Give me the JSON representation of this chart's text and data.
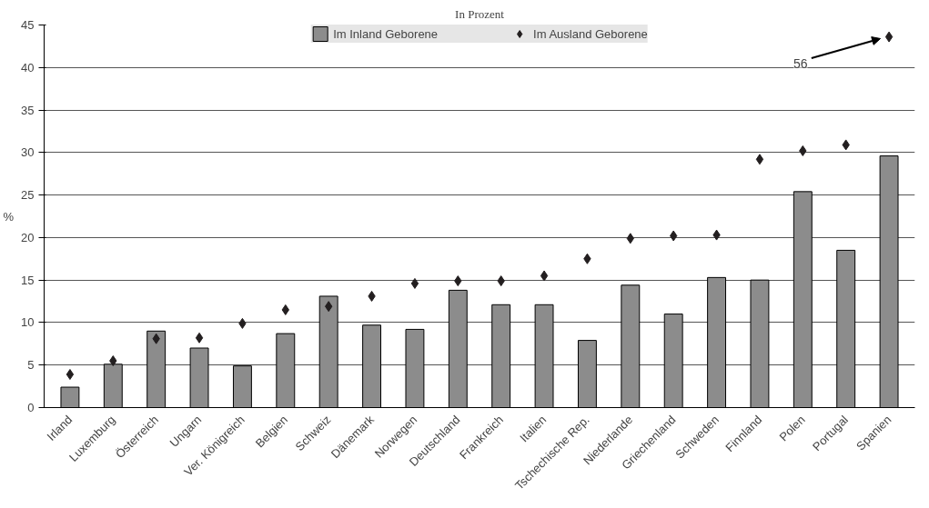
{
  "chart_data": {
    "type": "bar",
    "title": "In Prozent",
    "ylabel": "%",
    "categories": [
      "Irland",
      "Luxemburg",
      "Österreich",
      "Ungarn",
      "Ver. Königreich",
      "Belgien",
      "Schweiz",
      "Dänemark",
      "Norwegen",
      "Deutschland",
      "Frankreich",
      "Italien",
      "Tschechische Rep.",
      "Niederlande",
      "Griechenland",
      "Schweden",
      "Finnland",
      "Polen",
      "Portugal",
      "Spanien"
    ],
    "series": [
      {
        "name": "Im Inland Geborene",
        "color": "#8c8c8c",
        "values": [
          2.4,
          5.1,
          9.0,
          7.0,
          4.9,
          8.7,
          13.1,
          9.7,
          9.2,
          13.8,
          12.1,
          12.1,
          7.9,
          14.4,
          11.0,
          15.3,
          15.0,
          25.4,
          18.5,
          29.6
        ]
      },
      {
        "name": "Im Ausland Geborene",
        "type": "scatter",
        "marker": "diamond",
        "color": "#231f20",
        "values": [
          3.9,
          5.5,
          8.1,
          8.2,
          9.9,
          11.5,
          11.9,
          13.1,
          14.6,
          14.9,
          14.9,
          15.5,
          17.5,
          19.9,
          20.2,
          20.3,
          29.2,
          30.2,
          30.9,
          43.6
        ]
      }
    ],
    "annotations": [
      "56"
    ],
    "ylim": [
      0,
      45
    ],
    "yticks": [
      0,
      5,
      10,
      15,
      20,
      25,
      30,
      35,
      40,
      45
    ],
    "grid": "y",
    "legend": "top"
  }
}
